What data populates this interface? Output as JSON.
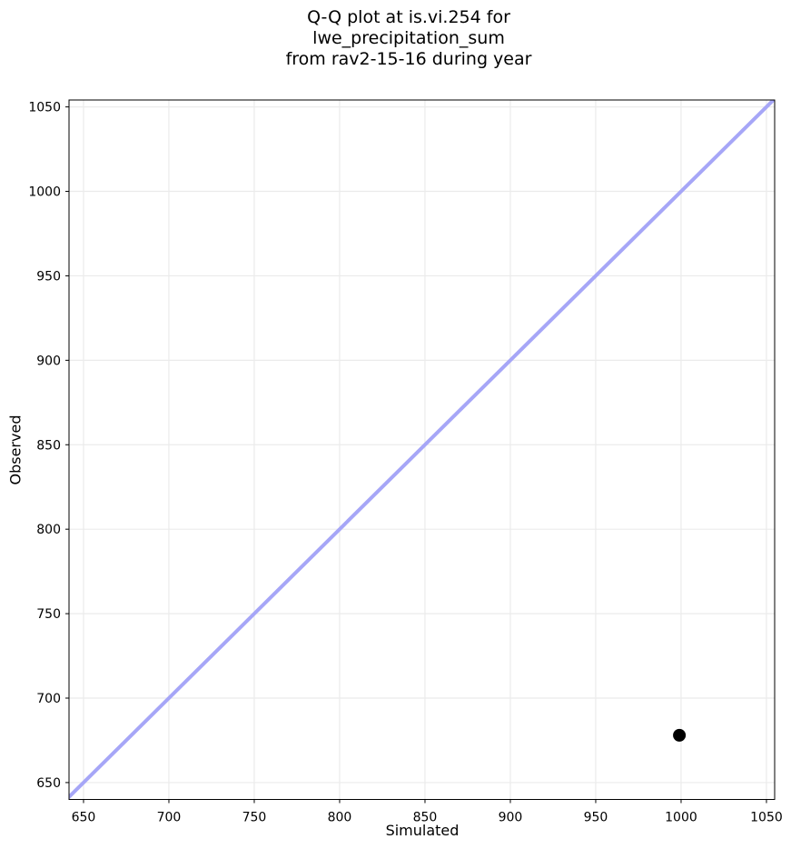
{
  "chart_data": {
    "type": "scatter",
    "title": "Q-Q plot at is.vi.254 for lwe_precipitation_sum\nfrom rav2-15-16 during year",
    "xlabel": "Simulated",
    "ylabel": "Observed",
    "xlim": [
      641.5,
      1054.8
    ],
    "ylim": [
      640.0,
      1054.1
    ],
    "x_ticks": [
      650,
      700,
      750,
      800,
      850,
      900,
      950,
      1000,
      1050
    ],
    "y_ticks": [
      650,
      700,
      750,
      800,
      850,
      900,
      950,
      1000,
      1050
    ],
    "grid": true,
    "legend": null,
    "points": [
      {
        "x": 999,
        "y": 678
      }
    ],
    "identity_line": {
      "start": 640,
      "end": 1055
    },
    "style": {
      "line_color": "#a6a6f7",
      "line_width": 4,
      "point_color": "#000000",
      "point_radius": 7,
      "grid_color": "#ebebeb",
      "spine_color": "#000000",
      "text_color": "#000000",
      "background": "#ffffff"
    }
  }
}
